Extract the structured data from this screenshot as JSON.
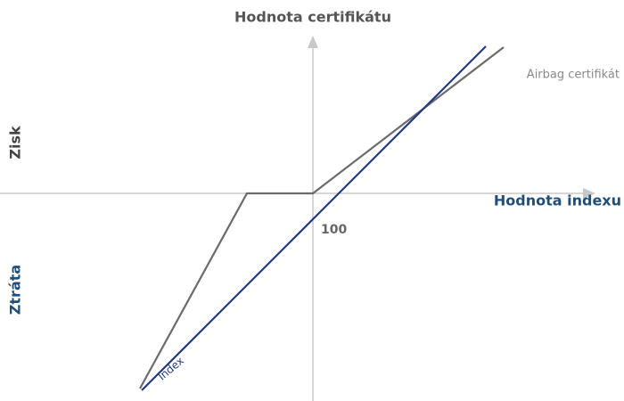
{
  "diagram": {
    "title": "Hodnota certifikátu",
    "x_axis_label": "Hodnota indexu",
    "gain_label": "Zisk",
    "loss_label": "Ztráta",
    "origin_label": "100",
    "lines": [
      {
        "name": "Airbag certifikát",
        "color": "#6b6b6b"
      },
      {
        "name": "Index",
        "color": "#233a7a"
      }
    ]
  }
}
